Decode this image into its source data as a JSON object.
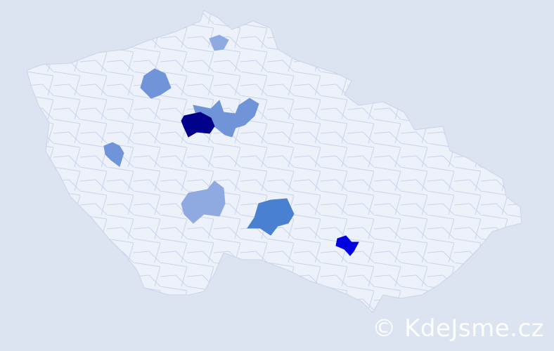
{
  "map": {
    "colors": {
      "background": "#dce4f1",
      "land": "#edf1f9",
      "border": "#c9d3ea",
      "level_1": "#8faae0",
      "level_2": "#6f95d8",
      "level_3": "#4a80d0",
      "level_4": "#0000e0",
      "level_5": "#00008b"
    },
    "highlighted_districts": [
      {
        "level": 5
      },
      {
        "level": 4
      },
      {
        "level": 3
      },
      {
        "level": 2
      },
      {
        "level": 2
      },
      {
        "level": 2
      },
      {
        "level": 1
      },
      {
        "level": 1
      }
    ]
  },
  "watermark": "© KdeJsme.cz"
}
